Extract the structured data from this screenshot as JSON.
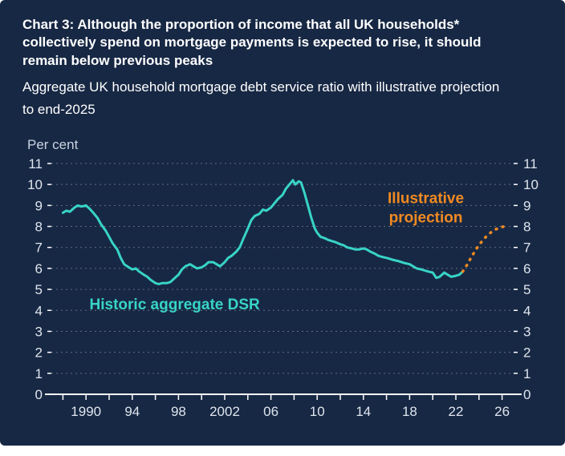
{
  "header": {
    "title": "Chart 3: Although the proportion of income that all UK households* collectively spend on mortgage payments is expected to rise, it should remain below previous peaks",
    "subtitle": "Aggregate UK household mortgage debt service ratio with illustrative projection to end-2025"
  },
  "colors": {
    "background": "#172844",
    "historic": "#38d4c6",
    "projection": "#f18a21",
    "axis_line": "#ffffff",
    "axis_text": "#dfe5ee",
    "unit_text": "#c9d3e0",
    "gridline": "rgba(255,255,255,0.32)"
  },
  "chart_data": {
    "type": "line",
    "title": "Aggregate UK household mortgage debt service ratio with illustrative projection to end-2025",
    "ylabel": "Per cent",
    "xlim": [
      1987,
      2027
    ],
    "ylim": [
      0,
      11
    ],
    "grid": "horizontal-dotted",
    "y_ticks": [
      0,
      1,
      2,
      3,
      4,
      5,
      6,
      7,
      8,
      9,
      10,
      11
    ],
    "y_tick_sides": [
      "left",
      "right"
    ],
    "x_minor_ticks": [
      1988,
      1990,
      1992,
      1994,
      1996,
      1998,
      2000,
      2002,
      2004,
      2006,
      2008,
      2010,
      2012,
      2014,
      2016,
      2018,
      2020,
      2022,
      2024,
      2026
    ],
    "x_ticks": [
      {
        "year": 1990,
        "label": "1990"
      },
      {
        "year": 1994,
        "label": "94"
      },
      {
        "year": 1998,
        "label": "98"
      },
      {
        "year": 2002,
        "label": "2002"
      },
      {
        "year": 2006,
        "label": "06"
      },
      {
        "year": 2010,
        "label": "10"
      },
      {
        "year": 2014,
        "label": "14"
      },
      {
        "year": 2018,
        "label": "18"
      },
      {
        "year": 2022,
        "label": "22"
      },
      {
        "year": 2026,
        "label": "26"
      }
    ],
    "series": [
      {
        "name": "Historic aggregate DSR",
        "style": "solid",
        "color_key": "historic",
        "width": 3,
        "points": [
          [
            1988.0,
            8.65
          ],
          [
            1988.3,
            8.75
          ],
          [
            1988.6,
            8.7
          ],
          [
            1989.0,
            8.9
          ],
          [
            1989.3,
            9.0
          ],
          [
            1989.6,
            8.95
          ],
          [
            1990.0,
            9.0
          ],
          [
            1990.3,
            8.85
          ],
          [
            1990.7,
            8.6
          ],
          [
            1991.0,
            8.4
          ],
          [
            1991.3,
            8.1
          ],
          [
            1991.7,
            7.8
          ],
          [
            1992.0,
            7.5
          ],
          [
            1992.3,
            7.2
          ],
          [
            1992.7,
            6.9
          ],
          [
            1993.0,
            6.5
          ],
          [
            1993.3,
            6.2
          ],
          [
            1993.7,
            6.05
          ],
          [
            1994.0,
            5.95
          ],
          [
            1994.3,
            6.0
          ],
          [
            1994.6,
            5.85
          ],
          [
            1995.0,
            5.7
          ],
          [
            1995.3,
            5.6
          ],
          [
            1995.6,
            5.45
          ],
          [
            1996.0,
            5.3
          ],
          [
            1996.3,
            5.25
          ],
          [
            1996.6,
            5.3
          ],
          [
            1997.0,
            5.3
          ],
          [
            1997.3,
            5.35
          ],
          [
            1997.6,
            5.5
          ],
          [
            1998.0,
            5.7
          ],
          [
            1998.3,
            5.95
          ],
          [
            1998.6,
            6.1
          ],
          [
            1999.0,
            6.2
          ],
          [
            1999.3,
            6.1
          ],
          [
            1999.6,
            6.0
          ],
          [
            2000.0,
            6.05
          ],
          [
            2000.3,
            6.15
          ],
          [
            2000.6,
            6.3
          ],
          [
            2001.0,
            6.3
          ],
          [
            2001.3,
            6.2
          ],
          [
            2001.6,
            6.1
          ],
          [
            2002.0,
            6.3
          ],
          [
            2002.3,
            6.5
          ],
          [
            2002.6,
            6.6
          ],
          [
            2003.0,
            6.8
          ],
          [
            2003.3,
            7.0
          ],
          [
            2003.6,
            7.4
          ],
          [
            2004.0,
            7.9
          ],
          [
            2004.3,
            8.3
          ],
          [
            2004.6,
            8.5
          ],
          [
            2005.0,
            8.6
          ],
          [
            2005.3,
            8.8
          ],
          [
            2005.6,
            8.75
          ],
          [
            2006.0,
            8.9
          ],
          [
            2006.3,
            9.1
          ],
          [
            2006.6,
            9.3
          ],
          [
            2007.0,
            9.5
          ],
          [
            2007.3,
            9.8
          ],
          [
            2007.6,
            10.0
          ],
          [
            2007.9,
            10.2
          ],
          [
            2008.1,
            10.0
          ],
          [
            2008.4,
            10.15
          ],
          [
            2008.6,
            10.1
          ],
          [
            2008.9,
            9.6
          ],
          [
            2009.2,
            9.0
          ],
          [
            2009.5,
            8.4
          ],
          [
            2009.8,
            7.9
          ],
          [
            2010.0,
            7.7
          ],
          [
            2010.3,
            7.5
          ],
          [
            2010.6,
            7.45
          ],
          [
            2011.0,
            7.35
          ],
          [
            2011.3,
            7.3
          ],
          [
            2011.6,
            7.25
          ],
          [
            2012.0,
            7.15
          ],
          [
            2012.3,
            7.1
          ],
          [
            2012.6,
            7.0
          ],
          [
            2013.0,
            6.95
          ],
          [
            2013.3,
            6.9
          ],
          [
            2013.6,
            6.9
          ],
          [
            2014.0,
            6.95
          ],
          [
            2014.3,
            6.9
          ],
          [
            2014.6,
            6.8
          ],
          [
            2015.0,
            6.7
          ],
          [
            2015.3,
            6.6
          ],
          [
            2015.6,
            6.55
          ],
          [
            2016.0,
            6.5
          ],
          [
            2016.3,
            6.45
          ],
          [
            2016.6,
            6.4
          ],
          [
            2017.0,
            6.35
          ],
          [
            2017.3,
            6.3
          ],
          [
            2017.6,
            6.25
          ],
          [
            2018.0,
            6.2
          ],
          [
            2018.3,
            6.1
          ],
          [
            2018.6,
            6.0
          ],
          [
            2019.0,
            5.95
          ],
          [
            2019.3,
            5.9
          ],
          [
            2019.6,
            5.85
          ],
          [
            2020.0,
            5.8
          ],
          [
            2020.3,
            5.55
          ],
          [
            2020.6,
            5.6
          ],
          [
            2021.0,
            5.8
          ],
          [
            2021.3,
            5.7
          ],
          [
            2021.6,
            5.6
          ],
          [
            2022.0,
            5.65
          ],
          [
            2022.3,
            5.7
          ],
          [
            2022.6,
            5.85
          ]
        ]
      },
      {
        "name": "Illustrative projection",
        "style": "dashed",
        "color_key": "projection",
        "width": 3.5,
        "points": [
          [
            2022.6,
            5.85
          ],
          [
            2023.0,
            6.2
          ],
          [
            2023.4,
            6.6
          ],
          [
            2023.8,
            6.95
          ],
          [
            2024.2,
            7.25
          ],
          [
            2024.6,
            7.5
          ],
          [
            2025.0,
            7.7
          ],
          [
            2025.4,
            7.85
          ],
          [
            2025.8,
            7.95
          ],
          [
            2026.2,
            8.0
          ]
        ]
      }
    ],
    "annotations": [
      {
        "lines": [
          "Historic aggregate DSR"
        ],
        "x": 1990.3,
        "y": 4.05,
        "color_key": "historic",
        "anchor": "start",
        "font_size": 19
      },
      {
        "lines": [
          "Illustrative",
          "projection"
        ],
        "x": 2019.4,
        "y": 9.1,
        "color_key": "projection",
        "anchor": "middle",
        "font_size": 19
      }
    ]
  }
}
